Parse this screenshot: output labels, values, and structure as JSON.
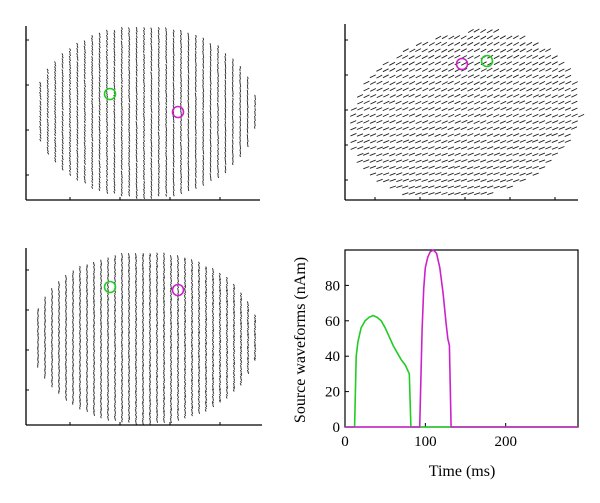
{
  "figure": {
    "panels": [
      {
        "id": "top-left",
        "kind": "dipole-scatter",
        "view": "top",
        "markers": [
          "green",
          "magenta"
        ]
      },
      {
        "id": "top-right",
        "kind": "dipole-scatter",
        "view": "side",
        "markers": [
          "magenta",
          "green"
        ]
      },
      {
        "id": "bottom-left",
        "kind": "dipole-scatter",
        "view": "front",
        "markers": [
          "green",
          "magenta"
        ]
      }
    ],
    "marker_colors": {
      "green": "#22cc22",
      "magenta": "#cc22cc"
    }
  },
  "chart_data": {
    "type": "line",
    "xlabel": "Time (ms)",
    "ylabel": "Source waveforms (nAm)",
    "xlim": [
      0,
      290
    ],
    "ylim": [
      0,
      100
    ],
    "xticks": [
      0,
      100,
      200
    ],
    "yticks": [
      0,
      20,
      40,
      60,
      80
    ],
    "grid": false,
    "series": [
      {
        "color": "#22cc22",
        "x": [
          0,
          12,
          14,
          16,
          20,
          25,
          30,
          35,
          40,
          45,
          50,
          55,
          60,
          65,
          70,
          75,
          79,
          80,
          82,
          85,
          140,
          290
        ],
        "y": [
          0,
          0,
          40,
          48,
          56,
          60,
          62,
          63,
          62,
          60,
          56,
          51,
          46,
          42,
          38,
          35,
          31,
          30,
          0,
          0,
          0,
          0
        ]
      },
      {
        "color": "#cc22cc",
        "x": [
          0,
          93,
          96,
          98,
          100,
          103,
          106,
          110,
          114,
          118,
          122,
          126,
          128,
          130,
          132,
          140,
          290
        ],
        "y": [
          0,
          0,
          55,
          78,
          90,
          96,
          99,
          100,
          98,
          90,
          76,
          58,
          50,
          46,
          0,
          0,
          0
        ]
      }
    ]
  }
}
